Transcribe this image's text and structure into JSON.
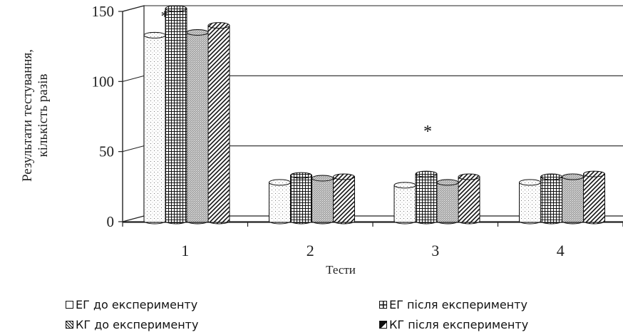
{
  "chart_data": {
    "type": "bar",
    "categories": [
      "1",
      "2",
      "3",
      "4"
    ],
    "series": [
      {
        "name": "ЕГ до експерименту",
        "values": [
          132,
          27,
          25,
          27
        ]
      },
      {
        "name": "ЕГ після експерименту",
        "values": [
          151,
          32,
          33,
          31
        ]
      },
      {
        "name": "КГ до експерименту",
        "values": [
          134,
          30,
          27,
          31
        ]
      },
      {
        "name": "КГ після експерименту",
        "values": [
          139,
          31,
          31,
          33
        ]
      }
    ],
    "xlabel": "Тести",
    "ylabel_line1": "Результати тестування,",
    "ylabel_line2": "кількість разів",
    "ylim": [
      0,
      150
    ],
    "yticks": [
      "0",
      "50",
      "100",
      "150"
    ],
    "annotations": [
      "*",
      "*"
    ],
    "grid": true,
    "legend_position": "bottom"
  },
  "legend": {
    "item0": "ЕГ до експерименту",
    "item1": "ЕГ після експерименту",
    "item2": "КГ до експерименту",
    "item3": "КГ після експерименту"
  }
}
